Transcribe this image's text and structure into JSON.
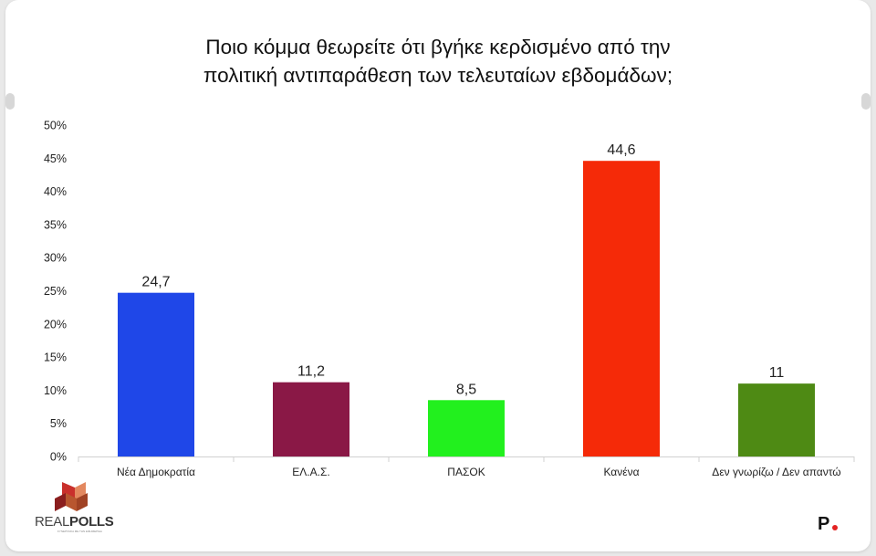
{
  "title": "Ποιο κόμμα θεωρείτε ότι βγήκε κερδισμένο από την\nπολιτική αντιπαράθεση των τελευταίων εβδομάδων;",
  "logo_left": {
    "text_regular": "REAL",
    "text_bold": "POLLS",
    "tagline": "ΣΥΝΕΡΓΑΣΙΑ ΜΕ ΤΗΝ ΕΦΗΜΕΡΙΔΑ"
  },
  "logo_right": {
    "text": "P"
  },
  "chart_data": {
    "type": "bar",
    "title": "Ποιο κόμμα θεωρείτε ότι βγήκε κερδισμένο από την πολιτική αντιπαράθεση των τελευταίων εβδομάδων;",
    "categories": [
      "Νέα Δημοκρατία",
      "ΕΛ.Α.Σ.",
      "ΠΑΣΟΚ",
      "Κανένα",
      "Δεν γνωρίζω / Δεν απαντώ"
    ],
    "values": [
      24.7,
      11.2,
      8.5,
      44.6,
      11
    ],
    "value_labels": [
      "24,7",
      "11,2",
      "8,5",
      "44,6",
      "11"
    ],
    "colors": [
      "#1f47e8",
      "#8a1846",
      "#22f01e",
      "#f52a08",
      "#4e8a14"
    ],
    "ylim": [
      0,
      50
    ],
    "yticks": [
      "0%",
      "5%",
      "10%",
      "15%",
      "20%",
      "25%",
      "30%",
      "35%",
      "40%",
      "45%",
      "50%"
    ],
    "ytick_values": [
      0,
      5,
      10,
      15,
      20,
      25,
      30,
      35,
      40,
      45,
      50
    ],
    "grid": false,
    "legend": "none",
    "xlabel": "",
    "ylabel": ""
  }
}
